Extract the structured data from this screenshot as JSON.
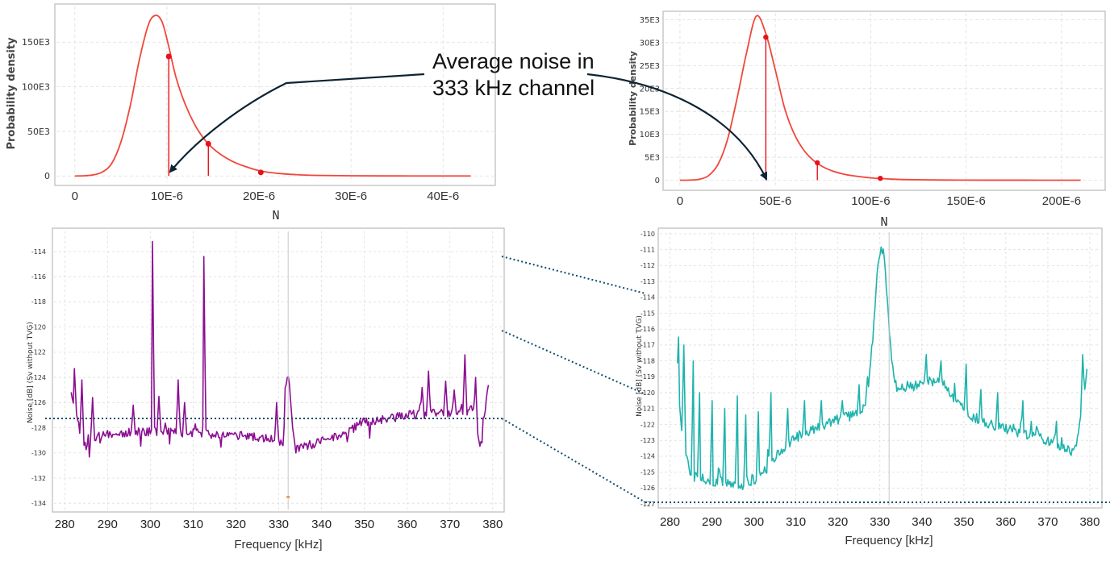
{
  "annotation": {
    "line1": "Average noise in",
    "line2": "333 kHz channel"
  },
  "colors": {
    "pdf": "#f0473c",
    "pdf_marker": "#e8101a",
    "purple": "#8b0f92",
    "teal": "#1fb3ad",
    "dashed": "#0f4c6e",
    "arrow": "#0d2433",
    "grid": "#dedede",
    "frame": "#bbbbbb"
  },
  "chart_data": [
    {
      "id": "pdf-left",
      "type": "line",
      "xlabel": "N",
      "ylabel": "Probability density",
      "xlim": [
        -2e-06,
        4.55e-05
      ],
      "ylim": [
        -7000,
        190000
      ],
      "xticks": [
        0,
        1e-05,
        2e-05,
        3e-05,
        4e-05
      ],
      "xtick_labels": [
        "0",
        "10E-6",
        "20E-6",
        "30E-6",
        "40E-6"
      ],
      "yticks": [
        0,
        50000,
        100000,
        150000
      ],
      "ytick_labels": [
        "0",
        "50E3",
        "100E3",
        "150E3"
      ],
      "curve": {
        "x": [
          0,
          1e-06,
          2e-06,
          3e-06,
          4e-06,
          5e-06,
          6e-06,
          7e-06,
          8e-06,
          8.8e-06,
          9.5e-06,
          1.02e-05,
          1.1e-05,
          1.2e-05,
          1.3e-05,
          1.4e-05,
          1.5e-05,
          1.6e-05,
          1.7e-05,
          1.8e-05,
          2e-05,
          2.2e-05,
          2.4e-05,
          2.6e-05,
          3e-05,
          3.5e-05,
          4e-05,
          4.3e-05
        ],
        "y": [
          0,
          200,
          1200,
          4500,
          14000,
          38000,
          78000,
          130000,
          170000,
          180000,
          172000,
          145000,
          110000,
          80000,
          58000,
          42000,
          31000,
          23000,
          17000,
          12500,
          6000,
          3000,
          1500,
          700,
          200,
          50,
          10,
          0
        ]
      },
      "markers": [
        {
          "x": 1.02e-05,
          "y": 134000,
          "stem": true
        },
        {
          "x": 1.45e-05,
          "y": 36000,
          "stem": true
        },
        {
          "x": 2.02e-05,
          "y": 4000,
          "stem": false
        }
      ]
    },
    {
      "id": "pdf-right",
      "type": "line",
      "xlabel": "N",
      "ylabel": "Probability density",
      "xlim": [
        -8e-06,
        0.000222
      ],
      "ylim": [
        -1500,
        36500
      ],
      "xticks": [
        0,
        5e-05,
        0.0001,
        0.00015,
        0.0002
      ],
      "xtick_labels": [
        "0",
        "50E-6",
        "100E-6",
        "150E-6",
        "200E-6"
      ],
      "yticks": [
        0,
        5000,
        10000,
        15000,
        20000,
        25000,
        30000,
        35000
      ],
      "ytick_labels": [
        "0",
        "5E3",
        "10E3",
        "15E3",
        "20E3",
        "25E3",
        "30E3",
        "35E3"
      ],
      "curve": {
        "x": [
          0,
          5e-06,
          1e-05,
          1.5e-05,
          2e-05,
          2.5e-05,
          3e-05,
          3.5e-05,
          4e-05,
          4.5e-05,
          5e-05,
          5.5e-05,
          6e-05,
          6.5e-05,
          7e-05,
          7.5e-05,
          8e-05,
          8.5e-05,
          9e-05,
          0.0001,
          0.00011,
          0.00012,
          0.00014,
          0.00016,
          0.00019,
          0.00021
        ],
        "y": [
          0,
          20,
          200,
          1000,
          3500,
          9000,
          18000,
          28000,
          35800,
          32000,
          24000,
          15500,
          10000,
          6500,
          4300,
          2900,
          2000,
          1400,
          1000,
          500,
          250,
          120,
          30,
          10,
          0,
          0
        ]
      },
      "markers": [
        {
          "x": 4.5e-05,
          "y": 31200,
          "stem": true
        },
        {
          "x": 7.2e-05,
          "y": 3800,
          "stem": true
        },
        {
          "x": 0.000105,
          "y": 400,
          "stem": false
        }
      ]
    },
    {
      "id": "noise-left",
      "type": "line",
      "xlabel": "Frequency [kHz]",
      "ylabel": "Noise [dB] (Sv without TVG)",
      "xlim": [
        277.5,
        382.3
      ],
      "ylim": [
        -134.5,
        -112.4
      ],
      "xticks": [
        280,
        290,
        300,
        310,
        320,
        330,
        340,
        350,
        360,
        370,
        380
      ],
      "xtick_labels": [
        "280",
        "290",
        "300",
        "310",
        "320",
        "330",
        "340",
        "350",
        "360",
        "370",
        "380"
      ],
      "yticks": [
        -114,
        -116,
        -118,
        -120,
        -122,
        -124,
        -126,
        -128,
        -130,
        -132,
        -134
      ],
      "ytick_labels": [
        "-114",
        "-116",
        "-118",
        "-120",
        "-122",
        "-124",
        "-126",
        "-128",
        "-130",
        "-132",
        "-134"
      ],
      "marker_line_x": 332.2,
      "series": {
        "x_start": 281.5,
        "x_end": 379,
        "x_step": 0.25,
        "seed": 11,
        "baseline": [
          [
            281.5,
            -125
          ],
          [
            282.5,
            -126.5
          ],
          [
            283.5,
            -128.5
          ],
          [
            285,
            -129.5
          ],
          [
            287,
            -128.8
          ],
          [
            290,
            -128.5
          ],
          [
            300,
            -128.3
          ],
          [
            310,
            -128.4
          ],
          [
            320,
            -128.6
          ],
          [
            328,
            -128.9
          ],
          [
            331,
            -129.2
          ],
          [
            331.5,
            -124.5
          ],
          [
            332.3,
            -124
          ],
          [
            333.2,
            -127.8
          ],
          [
            334,
            -129.7
          ],
          [
            338,
            -129.3
          ],
          [
            342,
            -128.8
          ],
          [
            345,
            -128.6
          ],
          [
            350,
            -127.5
          ],
          [
            355,
            -127.3
          ],
          [
            360,
            -127
          ],
          [
            365,
            -126.9
          ],
          [
            370,
            -126.8
          ],
          [
            374,
            -126.7
          ],
          [
            375.5,
            -126.5
          ],
          [
            376.5,
            -128.8
          ],
          [
            377.5,
            -129.2
          ],
          [
            378.5,
            -125.5
          ],
          [
            379,
            -124.5
          ]
        ],
        "noise": 0.35,
        "spikes_down": 1.2,
        "peaks": [
          [
            300.6,
            -113.2
          ],
          [
            312.6,
            -114.4
          ],
          [
            282.3,
            -123.3
          ],
          [
            284,
            -124.2
          ],
          [
            306.5,
            -124.2
          ],
          [
            302,
            -125.5
          ],
          [
            308,
            -126.0
          ],
          [
            296,
            -126.2
          ],
          [
            286.5,
            -125.6
          ],
          [
            329.5,
            -126.0
          ],
          [
            365,
            -123.5
          ],
          [
            373.5,
            -122.2
          ],
          [
            369,
            -124.3
          ],
          [
            376,
            -124.0
          ],
          [
            363.5,
            -124.8
          ],
          [
            371,
            -125.0
          ]
        ]
      }
    },
    {
      "id": "noise-right",
      "type": "line",
      "xlabel": "Frequency [kHz]",
      "ylabel": "Noise [dB] (Sv without TVG)",
      "xlim": [
        277.6,
        382.5
      ],
      "ylim": [
        -127.1,
        -109.9
      ],
      "xticks": [
        280,
        290,
        300,
        310,
        320,
        330,
        340,
        350,
        360,
        370,
        380
      ],
      "xtick_labels": [
        "280",
        "290",
        "300",
        "310",
        "320",
        "330",
        "340",
        "350",
        "360",
        "370",
        "380"
      ],
      "yticks": [
        -110,
        -111,
        -112,
        -113,
        -114,
        -115,
        -116,
        -117,
        -118,
        -119,
        -120,
        -121,
        -122,
        -123,
        -124,
        -125,
        -126,
        -127
      ],
      "ytick_labels": [
        "-110",
        "-111",
        "-112",
        "-113",
        "-114",
        "-115",
        "-116",
        "-117",
        "-118",
        "-119",
        "-120",
        "-121",
        "-122",
        "-123",
        "-124",
        "-125",
        "-126",
        "-127"
      ],
      "marker_line_x": 332.2,
      "series": {
        "x_start": 281.8,
        "x_end": 379.4,
        "x_step": 0.25,
        "seed": 5,
        "baseline": [
          [
            281.8,
            -119.5
          ],
          [
            282.5,
            -121.5
          ],
          [
            283.5,
            -123.5
          ],
          [
            285,
            -125.5
          ],
          [
            287,
            -125.2
          ],
          [
            290,
            -125.6
          ],
          [
            295,
            -125.7
          ],
          [
            298,
            -125.9
          ],
          [
            300,
            -125.5
          ],
          [
            303,
            -124.8
          ],
          [
            306,
            -123.8
          ],
          [
            310,
            -122.8
          ],
          [
            315,
            -122.2
          ],
          [
            320,
            -121.7
          ],
          [
            325,
            -121.3
          ],
          [
            327,
            -120.5
          ],
          [
            328.5,
            -116
          ],
          [
            329.5,
            -112
          ],
          [
            330.3,
            -110.8
          ],
          [
            331,
            -111.4
          ],
          [
            332,
            -115
          ],
          [
            333,
            -118.5
          ],
          [
            334,
            -119.6
          ],
          [
            338,
            -119.6
          ],
          [
            342,
            -119.3
          ],
          [
            345,
            -119.2
          ],
          [
            348,
            -120.5
          ],
          [
            352,
            -121.5
          ],
          [
            356,
            -122
          ],
          [
            360,
            -122.3
          ],
          [
            365,
            -122.6
          ],
          [
            370,
            -123
          ],
          [
            374,
            -123.5
          ],
          [
            376,
            -123.8
          ],
          [
            377,
            -123
          ],
          [
            378,
            -121.5
          ],
          [
            379,
            -119
          ],
          [
            379.4,
            -118.5
          ]
        ],
        "noise": 0.32,
        "spikes_down": 0,
        "peaks": [
          [
            282,
            -116.5
          ],
          [
            283.3,
            -117.0
          ],
          [
            285.5,
            -118.0
          ],
          [
            287,
            -120.0
          ],
          [
            290,
            -120.5
          ],
          [
            293,
            -121.0
          ],
          [
            296,
            -120.2
          ],
          [
            298,
            -121.4
          ],
          [
            301,
            -121.2
          ],
          [
            304,
            -120.0
          ],
          [
            308,
            -121.0
          ],
          [
            312,
            -120.5
          ],
          [
            316,
            -120.5
          ],
          [
            321,
            -120.5
          ],
          [
            325,
            -119.5
          ],
          [
            327,
            -119.0
          ],
          [
            341,
            -117.6
          ],
          [
            344.5,
            -118.0
          ],
          [
            350.5,
            -118.2
          ],
          [
            354,
            -119.8
          ],
          [
            358,
            -120.0
          ],
          [
            364,
            -120.5
          ],
          [
            372,
            -121.8
          ],
          [
            378.3,
            -117.6
          ]
        ]
      }
    }
  ]
}
